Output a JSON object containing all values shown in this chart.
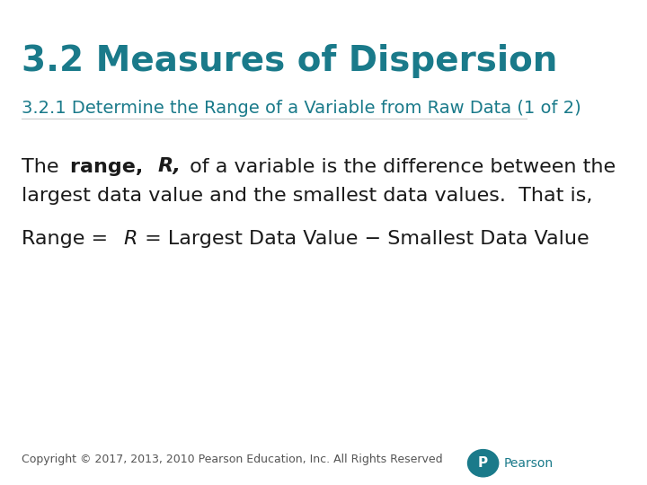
{
  "title": "3.2 Measures of Dispersion",
  "subtitle": "3.2.1 Determine the Range of a Variable from Raw Data",
  "subtitle_suffix": " (1 of 2)",
  "teal_color": "#1a7a8a",
  "dark_color": "#1a3a4a",
  "body_color": "#1a1a1a",
  "bg_color": "#ffffff",
  "para1_line1": "The range, R, of a variable is the difference between the",
  "para1_line2": "largest data value and the smallest data values.  That is,",
  "para2": "Range = R = Largest Data Value − Smallest Data Value",
  "copyright": "Copyright © 2017, 2013, 2010 Pearson Education, Inc. All Rights Reserved",
  "title_fontsize": 28,
  "subtitle_fontsize": 14,
  "body_fontsize": 16,
  "formula_fontsize": 16,
  "copyright_fontsize": 9,
  "pearson_color": "#1a7a8a"
}
